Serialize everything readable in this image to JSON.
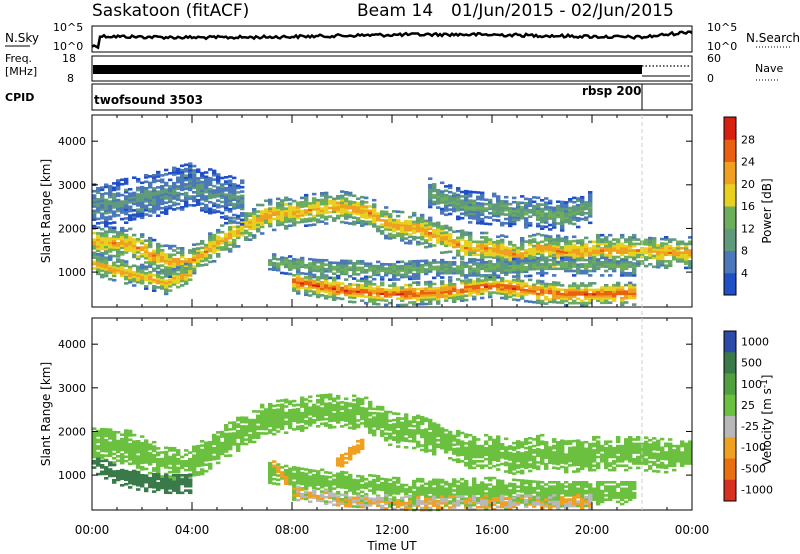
{
  "header": {
    "station": "Saskatoon (fitACF)",
    "beam": "Beam 14",
    "date_range": "01/Jun/2015 - 02/Jun/2015"
  },
  "noise_panel": {
    "left_label": "N.Sky",
    "right_label": "N.Search",
    "left_ticks": [
      "10^5",
      "10^0"
    ],
    "right_ticks": [
      "10^5",
      "10^0"
    ]
  },
  "freq_panel": {
    "left_label_line1": "Freq.",
    "left_label_line2": "[MHz]",
    "right_label": "Nave",
    "left_ticks": [
      "18",
      "8"
    ],
    "right_ticks": [
      "60",
      "0"
    ]
  },
  "cpid_panel": {
    "label": "CPID",
    "programs": [
      "twofsound 3503",
      "rbsp 200"
    ]
  },
  "colors": {
    "power_scale": [
      "#2050c8",
      "#4a78b8",
      "#5f9a7a",
      "#6cae5a",
      "#e8d020",
      "#f0a020",
      "#e86010",
      "#d82010"
    ],
    "velocity_scale": [
      "#2c4aa8",
      "#3a7a4a",
      "#50a040",
      "#6cc040",
      "#b8b8b8",
      "#f0a020",
      "#e87010",
      "#d83020"
    ]
  },
  "chart_data": [
    {
      "type": "heatmap",
      "panel": "power",
      "ylabel": "Slant Range [km]",
      "ylim": [
        200,
        4600
      ],
      "yticks": [
        1000,
        2000,
        3000,
        4000
      ],
      "xlim": [
        0,
        24
      ],
      "colorbar_label": "Power [dB]",
      "colorbar_ticks": [
        4,
        8,
        12,
        16,
        20,
        24,
        28
      ],
      "colorbar_range": [
        0,
        32
      ],
      "bands": [
        {
          "points": [
            [
              0,
              1700
            ],
            [
              1.5,
              1650
            ],
            [
              3,
              1250
            ],
            [
              4,
              1250
            ],
            [
              5,
              1650
            ],
            [
              6,
              2000
            ],
            [
              7,
              2300
            ],
            [
              9,
              2450
            ],
            [
              10,
              2500
            ],
            [
              11,
              2400
            ],
            [
              12,
              2050
            ],
            [
              13,
              2000
            ],
            [
              14,
              1800
            ],
            [
              15,
              1550
            ],
            [
              16,
              1550
            ],
            [
              17,
              1400
            ],
            [
              18,
              1550
            ],
            [
              19,
              1450
            ],
            [
              20,
              1500
            ],
            [
              22,
              1500
            ],
            [
              23,
              1450
            ],
            [
              24,
              1450
            ]
          ],
          "width": 350,
          "peak_db": 22
        },
        {
          "points": [
            [
              0,
              1200
            ],
            [
              2,
              900
            ],
            [
              3,
              750
            ],
            [
              4,
              1000
            ]
          ],
          "width": 250,
          "peak_db": 22
        },
        {
          "points": [
            [
              7,
              1250
            ],
            [
              9,
              1100
            ],
            [
              12,
              1050
            ],
            [
              14,
              1100
            ],
            [
              16,
              1100
            ],
            [
              18,
              1150
            ],
            [
              20,
              1150
            ],
            [
              21.8,
              1150
            ]
          ],
          "width": 220,
          "peak_db": 14
        },
        {
          "points": [
            [
              8,
              800
            ],
            [
              10,
              600
            ],
            [
              12,
              500
            ],
            [
              14,
              550
            ],
            [
              16,
              700
            ],
            [
              18,
              550
            ],
            [
              19,
              500
            ],
            [
              21.8,
              520
            ]
          ],
          "width": 260,
          "peak_db": 27
        },
        {
          "points": [
            [
              0,
              2500
            ],
            [
              2,
              2700
            ],
            [
              4,
              3000
            ],
            [
              6,
              2600
            ]
          ],
          "width": 500,
          "peak_db": 9
        },
        {
          "points": [
            [
              13.5,
              2800
            ],
            [
              15,
              2500
            ],
            [
              17,
              2400
            ],
            [
              19,
              2300
            ],
            [
              20,
              2500
            ]
          ],
          "width": 350,
          "peak_db": 12
        }
      ]
    },
    {
      "type": "heatmap",
      "panel": "velocity",
      "ylabel": "Slant Range [km]",
      "xlabel": "Time UT",
      "ylim": [
        200,
        4600
      ],
      "yticks": [
        1000,
        2000,
        3000,
        4000
      ],
      "xlim": [
        0,
        24
      ],
      "xticks": [
        "00:00",
        "04:00",
        "08:00",
        "12:00",
        "16:00",
        "20:00",
        "00:00"
      ],
      "colorbar_label": "Velocity [m s^-1]",
      "colorbar_ticks": [
        1000,
        500,
        100,
        25,
        -25,
        -100,
        -500,
        -1000
      ],
      "bands": [
        {
          "points": [
            [
              0,
              1700
            ],
            [
              1.5,
              1650
            ],
            [
              3,
              1250
            ],
            [
              4,
              1250
            ],
            [
              5,
              1650
            ],
            [
              6,
              2000
            ],
            [
              7,
              2300
            ],
            [
              9,
              2450
            ],
            [
              10,
              2500
            ],
            [
              11,
              2400
            ],
            [
              12,
              2050
            ],
            [
              13,
              2000
            ],
            [
              14,
              1800
            ],
            [
              15,
              1550
            ],
            [
              16,
              1550
            ],
            [
              17,
              1400
            ],
            [
              18,
              1550
            ],
            [
              19,
              1450
            ],
            [
              20,
              1500
            ],
            [
              22,
              1500
            ],
            [
              23,
              1450
            ],
            [
              24,
              1450
            ]
          ],
          "width": 380,
          "velocity": 0
        },
        {
          "points": [
            [
              0,
              1300
            ],
            [
              1,
              1000
            ],
            [
              2,
              850
            ],
            [
              3,
              800
            ],
            [
              4,
              800
            ]
          ],
          "width": 200,
          "velocity": 300
        },
        {
          "points": [
            [
              7,
              1100
            ],
            [
              9,
              900
            ],
            [
              12,
              700
            ],
            [
              14,
              650
            ],
            [
              16,
              700
            ],
            [
              18,
              600
            ],
            [
              21.8,
              600
            ]
          ],
          "width": 260,
          "velocity": 0
        },
        {
          "points": [
            [
              7.2,
              1300
            ],
            [
              7.5,
              1050
            ],
            [
              7.8,
              850
            ]
          ],
          "width": 120,
          "velocity": -400
        },
        {
          "points": [
            [
              9.7,
              1200
            ],
            [
              10.3,
              1500
            ],
            [
              10.8,
              1750
            ]
          ],
          "width": 140,
          "velocity": -400
        },
        {
          "points": [
            [
              8,
              600
            ],
            [
              10,
              450
            ],
            [
              13,
              350
            ],
            [
              17,
              380
            ],
            [
              20,
              400
            ]
          ],
          "width": 150,
          "velocity": -80
        }
      ]
    }
  ]
}
